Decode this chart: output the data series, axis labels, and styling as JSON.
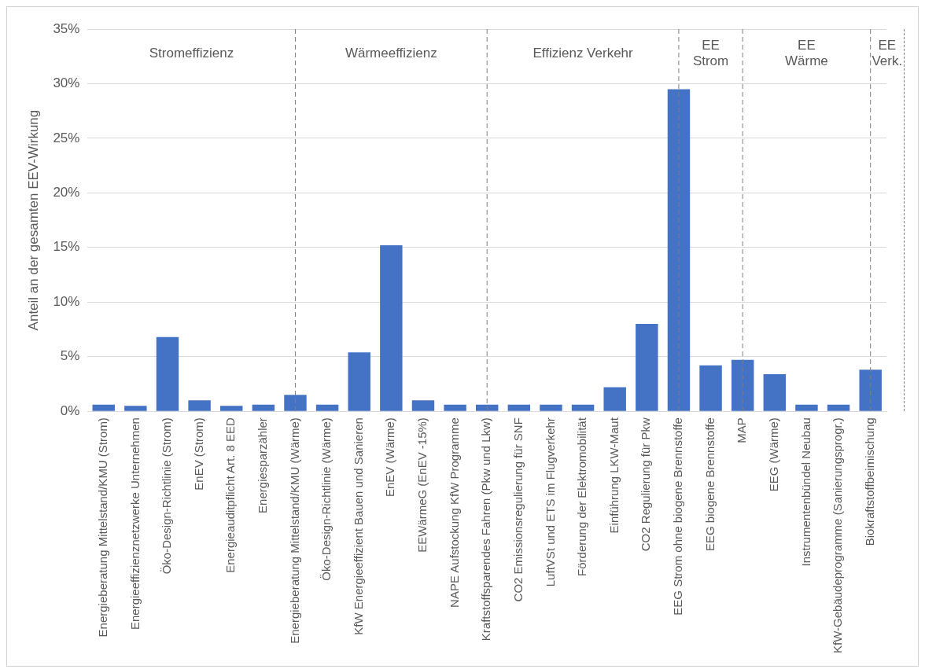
{
  "chart_data": {
    "type": "bar",
    "ylabel": "Anteil an der gesamten EEV-Wirkung",
    "categories": [
      "Energieberatung Mittelstand/KMU (Strom)",
      "Energieeffizienznetzwerke Unternehmen",
      "Öko-Design-Richtlinie (Strom)",
      "EnEV (Strom)",
      "Energieauditpflicht Art. 8 EED",
      "Energiesparzähler",
      "Energieberatung Mittelstand/KMU (Wärme)",
      "Öko-Design-Richtlinie (Wärme)",
      "KfW Energieeffizient Bauen und Sanieren",
      "EnEV (Wärme)",
      "EEWärmeG (EnEV -15%)",
      "NAPE Aufstockung KfW Programme",
      "Kraftstoffsparendes Fahren (Pkw und Lkw)",
      "CO2 Emissionsregulierung für SNF",
      "LuftVSt und ETS im Flugverkehr",
      "Förderung der Elektromobilität",
      "Einführung LKW-Maut",
      "CO2 Regulierung für Pkw",
      "EEG Strom ohne biogene Brennstoffe",
      "EEG biogene Brennstoffe",
      "MAP",
      "EEG (Wärme)",
      "Instrumentenbündel Neubau",
      "KfW-Gebäudeprogramme (Sanierungsprogr.)",
      "Biokraftstoffbeimischung"
    ],
    "values": [
      0.6,
      0.5,
      6.8,
      1.0,
      0.5,
      0.6,
      1.5,
      0.6,
      5.4,
      15.2,
      1.0,
      0.6,
      0.6,
      0.6,
      0.6,
      0.6,
      2.2,
      8.0,
      29.5,
      4.2,
      4.7,
      3.4,
      0.6,
      0.6,
      3.8
    ],
    "color": "#4472c4",
    "ylim": [
      0,
      35
    ],
    "yticks": [
      {
        "value": 0,
        "label": "0%"
      },
      {
        "value": 5,
        "label": "5%"
      },
      {
        "value": 10,
        "label": "10%"
      },
      {
        "value": 15,
        "label": "15%"
      },
      {
        "value": 20,
        "label": "20%"
      },
      {
        "value": 25,
        "label": "25%"
      },
      {
        "value": 30,
        "label": "30%"
      },
      {
        "value": 35,
        "label": "35%"
      }
    ],
    "grid": "y",
    "annotations": [
      "Stromeffizienz",
      "Wärmeeffizienz",
      "Effizienz Verkehr",
      "EE\nStrom",
      "EE\nWärme",
      "EE\nVerk."
    ],
    "ref_lines": [
      {
        "axis": "x",
        "value": "Energieberatung Mittelstand/KMU (Wärme)",
        "line_style": "dashed",
        "color": "#7f7f7f"
      },
      {
        "axis": "x",
        "value": "Kraftstoffsparendes Fahren (Pkw und Lkw)",
        "line_style": "dashed",
        "color": "#7f7f7f"
      },
      {
        "axis": "x",
        "value": "EEG Strom ohne biogene Brennstoffe",
        "line_style": "dashed",
        "color": "#7f7f7f"
      },
      {
        "axis": "x",
        "value": "MAP",
        "line_style": "dashed",
        "color": "#7f7f7f"
      },
      {
        "axis": "x",
        "value": "Biokraftstoffbeimischung",
        "line_style": "dashed",
        "color": "#7f7f7f"
      }
    ]
  }
}
